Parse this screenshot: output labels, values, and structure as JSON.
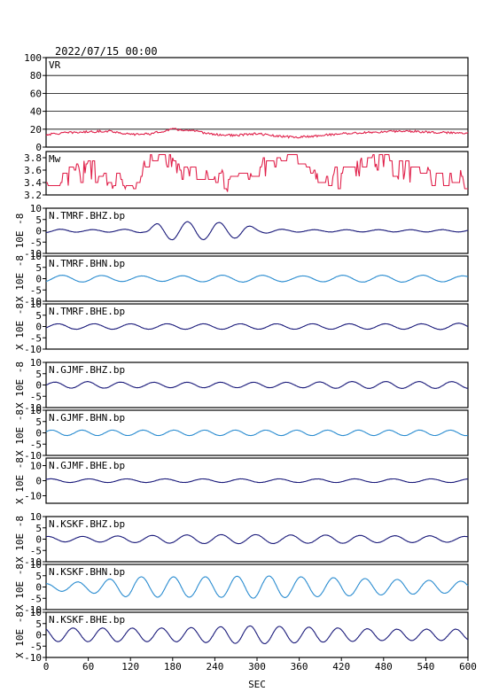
{
  "header": {
    "datetime": "2022/07/15 00:00"
  },
  "colors": {
    "vr": "#e0204a",
    "mw": "#e0204a",
    "navy": "#1a1a7a",
    "blue": "#2a8cd0",
    "axis": "#000000",
    "grid": "#000000"
  },
  "chart_data": {
    "type": "line",
    "xlabel": "SEC",
    "xlim": [
      0,
      600
    ],
    "xticks": [
      "0",
      "60",
      "120",
      "180",
      "240",
      "300",
      "360",
      "420",
      "480",
      "540",
      "600"
    ],
    "panels": [
      {
        "key": "vr",
        "label": "VR",
        "ylim": [
          0,
          100
        ],
        "yticks": [
          "100",
          "80",
          "60",
          "40",
          "20",
          "0"
        ],
        "grid": true,
        "color": "vr",
        "x": [
          0,
          30,
          60,
          90,
          120,
          150,
          180,
          210,
          240,
          270,
          300,
          330,
          360,
          390,
          420,
          450,
          480,
          510,
          540,
          570,
          600
        ],
        "y": [
          14,
          16,
          17,
          18,
          14,
          15,
          20,
          18,
          14,
          13,
          15,
          12,
          11,
          13,
          15,
          16,
          17,
          18,
          17,
          16,
          16
        ]
      },
      {
        "key": "mw",
        "label": "Mw",
        "ylim": [
          3.2,
          3.9
        ],
        "yticks": [
          "3.8",
          "3.6",
          "3.4",
          "3.2"
        ],
        "color": "mw",
        "x": [
          0,
          30,
          60,
          90,
          120,
          150,
          180,
          210,
          240,
          270,
          300,
          330,
          360,
          390,
          420,
          450,
          480,
          510,
          540,
          570,
          600
        ],
        "y": [
          3.4,
          3.5,
          3.6,
          3.45,
          3.35,
          3.7,
          3.75,
          3.5,
          3.45,
          3.4,
          3.55,
          3.8,
          3.75,
          3.5,
          3.45,
          3.7,
          3.75,
          3.6,
          3.5,
          3.45,
          3.4
        ]
      },
      {
        "key": "tmrf_bhz",
        "label": "N.TMRF.BHZ.bp",
        "ylim": [
          -10,
          10
        ],
        "yticks": [
          "10",
          "5",
          "0",
          "-5",
          "-10"
        ],
        "color": "navy",
        "x": [
          0,
          60,
          100,
          140,
          160,
          180,
          200,
          240,
          280,
          300,
          340,
          380,
          420,
          480,
          540,
          600
        ],
        "y": [
          0.8,
          0.5,
          0.6,
          0.8,
          3.5,
          4,
          4,
          3.8,
          3,
          1.2,
          0.6,
          0.5,
          0.5,
          0.5,
          0.5,
          0.5
        ]
      },
      {
        "key": "tmrf_bhn",
        "label": "N.TMRF.BHN.bp",
        "ylim": [
          -10,
          10
        ],
        "yticks": [
          "10",
          "5",
          "0",
          "-5",
          "-10"
        ],
        "color": "blue",
        "x": [
          0,
          60,
          120,
          180,
          240,
          300,
          360,
          420,
          480,
          540,
          600
        ],
        "y": [
          1.5,
          1.5,
          1.2,
          1.2,
          1.5,
          1.5,
          1.2,
          1.5,
          1.5,
          1.5,
          1.2
        ]
      },
      {
        "key": "tmrf_bhe",
        "label": "N.TMRF.BHE.bp",
        "ylim": [
          -10,
          10
        ],
        "yticks": [
          "10",
          "5",
          "0",
          "-5",
          "-10"
        ],
        "color": "navy",
        "x": [
          0,
          60,
          120,
          180,
          240,
          300,
          360,
          420,
          480,
          540,
          600
        ],
        "y": [
          1.2,
          1.2,
          1.2,
          1.2,
          1.2,
          1.2,
          1.2,
          1.2,
          1.2,
          1.2,
          1.5
        ]
      },
      {
        "key": "gjmf_bhz",
        "label": "N.GJMF.BHZ.bp",
        "ylim": [
          -10,
          10
        ],
        "yticks": [
          "10",
          "5",
          "0",
          "-5",
          "-10"
        ],
        "color": "navy",
        "x": [
          0,
          60,
          120,
          180,
          240,
          300,
          360,
          420,
          480,
          540,
          600
        ],
        "y": [
          1.2,
          1.5,
          1.2,
          1.2,
          1.2,
          1.2,
          1.2,
          1.5,
          1.5,
          1.5,
          1.5
        ]
      },
      {
        "key": "gjmf_bhn",
        "label": "N.GJMF.BHN.bp",
        "ylim": [
          -10,
          10
        ],
        "yticks": [
          "10",
          "5",
          "0",
          "-5",
          "-10"
        ],
        "color": "blue",
        "x": [
          0,
          60,
          120,
          180,
          240,
          300,
          360,
          420,
          480,
          540,
          600
        ],
        "y": [
          1.2,
          1.2,
          1.2,
          1.2,
          1.2,
          1.2,
          1.2,
          1.2,
          1.2,
          1.2,
          1.2
        ]
      },
      {
        "key": "gjmf_bhe",
        "label": "N.GJMF.BHE.bp",
        "ylim": [
          -15,
          15
        ],
        "yticks": [
          "10",
          "0",
          "-10"
        ],
        "color": "navy",
        "x": [
          0,
          60,
          120,
          180,
          240,
          300,
          360,
          420,
          480,
          540,
          600
        ],
        "y": [
          1.2,
          1.2,
          1.2,
          1.2,
          1.2,
          1.2,
          1.2,
          1.2,
          1.2,
          1.2,
          1.2
        ]
      },
      {
        "key": "kskf_bhz",
        "label": "N.KSKF.BHZ.bp",
        "ylim": [
          -10,
          10
        ],
        "yticks": [
          "10",
          "5",
          "0",
          "-5",
          "-10"
        ],
        "color": "navy",
        "x": [
          0,
          60,
          120,
          180,
          240,
          300,
          360,
          420,
          480,
          540,
          600
        ],
        "y": [
          1.2,
          1.2,
          1.5,
          1.8,
          2,
          2,
          1.8,
          1.8,
          1.5,
          1.5,
          1.2
        ]
      },
      {
        "key": "kskf_bhn",
        "label": "N.KSKF.BHN.bp",
        "ylim": [
          -10,
          10
        ],
        "yticks": [
          "10",
          "5",
          "0",
          "-5",
          "-10"
        ],
        "color": "blue",
        "x": [
          0,
          60,
          120,
          180,
          240,
          300,
          360,
          420,
          480,
          540,
          600
        ],
        "y": [
          1.5,
          2.5,
          4.5,
          4.5,
          4.5,
          5,
          4.5,
          4,
          3.5,
          3,
          2.5
        ]
      },
      {
        "key": "kskf_bhe",
        "label": "N.KSKF.BHE.bp",
        "ylim": [
          -10,
          10
        ],
        "yticks": [
          "10",
          "5",
          "0",
          "-5",
          "-10"
        ],
        "color": "navy",
        "x": [
          0,
          60,
          120,
          180,
          240,
          300,
          360,
          420,
          480,
          540,
          600
        ],
        "y": [
          3,
          3,
          3,
          3,
          3.5,
          4,
          3.5,
          3,
          2.5,
          2.5,
          2.5
        ]
      }
    ],
    "ylabels": [
      {
        "text": "10E -8",
        "panel": 2
      },
      {
        "text": "X 10E -8",
        "panel": 3
      },
      {
        "text": "X 10E -8",
        "panel": 4
      },
      {
        "text": "X 10E -8",
        "panel": 5
      },
      {
        "text": "X 10E -8",
        "panel": 6
      },
      {
        "text": "X 10E -8",
        "panel": 7
      },
      {
        "text": "X 10E -8",
        "panel": 8
      },
      {
        "text": "X 10E -8",
        "panel": 9
      },
      {
        "text": "X 10E -8",
        "panel": 10
      }
    ]
  }
}
